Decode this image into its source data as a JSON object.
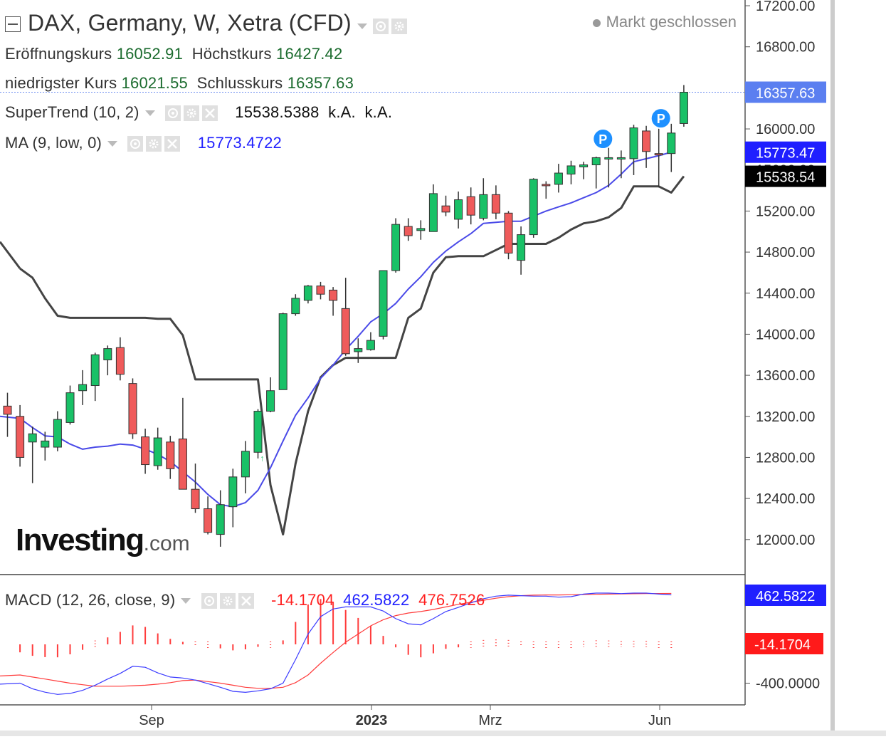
{
  "header": {
    "title": "DAX, Germany, W, Xetra (CFD)",
    "market_status": "Markt geschlossen",
    "open_label": "Eröffnungskurs",
    "open_value": "16052.91",
    "high_label": "Höchstkurs",
    "high_value": "16427.42",
    "low_label": "niedrigster Kurs",
    "low_value": "16021.55",
    "close_label": "Schlusskurs",
    "close_value": "16357.63"
  },
  "indicators": {
    "supertrend": {
      "label": "SuperTrend (10, 2)",
      "value": "15538.5388",
      "v2": "k.A.",
      "v3": "k.A."
    },
    "ma": {
      "label": "MA (9, low, 0)",
      "value": "15773.4722"
    },
    "macd": {
      "label": "MACD (12, 26, close, 9)",
      "hist": "-14.1704",
      "macd": "462.5822",
      "signal": "476.7526"
    }
  },
  "logo": {
    "main": "Investing",
    "suffix": ".com"
  },
  "colors": {
    "up": "#19c167",
    "down": "#ef5b5b",
    "ma": "#4a4ae8",
    "supertrend": "#444444",
    "price_tag": "#5b7ff0",
    "ma_tag": "#1f1fff",
    "st_tag": "#000000",
    "macd_line": "#3b3bff",
    "signal_line": "#ff3b3b",
    "hist": "#ff3b3b"
  },
  "chart_data": {
    "type": "candlestick",
    "y_axis_ticks": [
      "17200.00",
      "16800.00",
      "16400.00",
      "16000.00",
      "15600.00",
      "15200.00",
      "14800.00",
      "14400.00",
      "14000.00",
      "13600.00",
      "13200.00",
      "12800.00",
      "12400.00",
      "12000.00"
    ],
    "x_axis_labels": [
      "Sep",
      "2023",
      "Mrz",
      "Jun"
    ],
    "price_tags": {
      "close": "16357.63",
      "ma": "15773.47",
      "supertrend": "15538.54"
    },
    "candles": [
      [
        13300,
        13220,
        13430,
        13000
      ],
      [
        13200,
        12800,
        13310,
        12710
      ],
      [
        12950,
        13030,
        13100,
        12550
      ],
      [
        12900,
        12960,
        13050,
        12770
      ],
      [
        12900,
        13170,
        13250,
        12860
      ],
      [
        13140,
        13430,
        13500,
        13120
      ],
      [
        13450,
        13510,
        13650,
        13310
      ],
      [
        13500,
        13800,
        13820,
        13350
      ],
      [
        13750,
        13860,
        13890,
        13600
      ],
      [
        13870,
        13610,
        13970,
        13550
      ],
      [
        13520,
        13030,
        13570,
        12980
      ],
      [
        13000,
        12730,
        13080,
        12640
      ],
      [
        12720,
        12990,
        13090,
        12680
      ],
      [
        12950,
        12690,
        13010,
        12590
      ],
      [
        12980,
        12490,
        13380,
        12500
      ],
      [
        12490,
        12300,
        12740,
        12260
      ],
      [
        12300,
        12070,
        12420,
        12050
      ],
      [
        12050,
        12340,
        12480,
        11930
      ],
      [
        12320,
        12610,
        12690,
        12120
      ],
      [
        12610,
        12860,
        12960,
        12450
      ],
      [
        12850,
        13250,
        13270,
        12790
      ],
      [
        13250,
        13450,
        13580,
        13240
      ],
      [
        13460,
        14200,
        14210,
        13460
      ],
      [
        14200,
        14350,
        14390,
        14180
      ],
      [
        14330,
        14470,
        14480,
        14300
      ],
      [
        14470,
        14390,
        14510,
        14340
      ],
      [
        14430,
        14330,
        14460,
        14180
      ],
      [
        14250,
        13810,
        14550,
        13790
      ],
      [
        13830,
        13860,
        13960,
        13720
      ],
      [
        13850,
        13940,
        14020,
        13840
      ],
      [
        13980,
        14620,
        14620,
        13950
      ],
      [
        14620,
        15070,
        15130,
        14600
      ],
      [
        15050,
        14960,
        15130,
        14910
      ],
      [
        15010,
        15030,
        15110,
        14920
      ],
      [
        15000,
        15370,
        15460,
        15000
      ],
      [
        15250,
        15190,
        15350,
        15150
      ],
      [
        15120,
        15310,
        15390,
        15030
      ],
      [
        15340,
        15160,
        15430,
        15070
      ],
      [
        15130,
        15360,
        15520,
        15110
      ],
      [
        15360,
        15180,
        15450,
        15120
      ],
      [
        15180,
        14790,
        15200,
        14730
      ],
      [
        14720,
        14970,
        15050,
        14580
      ],
      [
        14970,
        15510,
        15520,
        14940
      ],
      [
        15460,
        15450,
        15490,
        15320
      ],
      [
        15460,
        15570,
        15660,
        15380
      ],
      [
        15560,
        15640,
        15690,
        15460
      ],
      [
        15630,
        15650,
        15680,
        15510
      ],
      [
        15650,
        15720,
        15730,
        15420
      ],
      [
        15720,
        15720,
        15820,
        15430
      ],
      [
        15720,
        15720,
        15790,
        15520
      ],
      [
        15710,
        16010,
        16040,
        15550
      ],
      [
        15980,
        15780,
        16030,
        15620
      ],
      [
        15760,
        15750,
        16020,
        15430
      ],
      [
        15760,
        15960,
        16050,
        15580
      ],
      [
        16052.91,
        16357.63,
        16427.42,
        16021.55
      ]
    ],
    "ma_line": [
      null,
      13180,
      13090,
      13010,
      13000,
      12930,
      12880,
      12900,
      12910,
      12930,
      12920,
      12880,
      12830,
      12760,
      12660,
      12560,
      12440,
      12340,
      12320,
      12360,
      12480,
      12700,
      12960,
      13210,
      13380,
      13570,
      13700,
      13850,
      13980,
      14120,
      14200,
      14300,
      14440,
      14560,
      14700,
      14810,
      14900,
      14980,
      15080,
      15090,
      15100,
      15100,
      15150,
      15200,
      15240,
      15280,
      15330,
      15380,
      15450,
      15560,
      15680,
      15710,
      15740,
      15773.47
    ],
    "supertrend_line": [
      null,
      14640,
      14550,
      14350,
      14180,
      14160,
      14160,
      14160,
      14160,
      14160,
      14160,
      14160,
      14150,
      14150,
      13990,
      13560,
      13560,
      13560,
      13560,
      13560,
      13560,
      12530,
      12050,
      12740,
      13250,
      13580,
      13700,
      13770,
      13770,
      13770,
      13770,
      13770,
      14160,
      14250,
      14600,
      14750,
      14760,
      14760,
      14760,
      14820,
      14880,
      14880,
      14880,
      14880,
      14940,
      15020,
      15080,
      15100,
      15140,
      15230,
      15440,
      15440,
      15440,
      15380,
      15538.54
    ],
    "p_markers": [
      {
        "candle": 48,
        "text": "P"
      },
      {
        "candle": 52,
        "text": "P"
      }
    ],
    "macd": {
      "y_axis_ticks": [
        "-400.0000"
      ],
      "price_tags": {
        "macd": "462.5822",
        "hist": "-14.1704"
      },
      "macd_line": [
        -400,
        -455,
        -488,
        -510,
        -500,
        -470,
        -420,
        -360,
        -305,
        -235,
        -245,
        -300,
        -340,
        -350,
        -370,
        -405,
        -440,
        -480,
        -490,
        -475,
        -455,
        -400,
        -170,
        80,
        250,
        325,
        345,
        345,
        345,
        305,
        230,
        180,
        170,
        230,
        300,
        340,
        385,
        425,
        450,
        460,
        455,
        450,
        450,
        440,
        445,
        470,
        480,
        480,
        475,
        480,
        480,
        470,
        462.58
      ],
      "signal_line": [
        -320,
        -340,
        -360,
        -380,
        -400,
        -415,
        -430,
        -430,
        -430,
        -425,
        -420,
        -410,
        -395,
        -375,
        -370,
        -385,
        -400,
        -420,
        -440,
        -450,
        -450,
        -440,
        -395,
        -320,
        -205,
        -100,
        0,
        80,
        160,
        220,
        260,
        285,
        300,
        320,
        345,
        370,
        390,
        410,
        430,
        445,
        455,
        460,
        462,
        462,
        464,
        466,
        468,
        470,
        472,
        474,
        475,
        476,
        476.75
      ],
      "histogram": [
        -80,
        -115,
        -128,
        -130,
        -100,
        -55,
        10,
        70,
        125,
        190,
        175,
        110,
        55,
        25,
        0,
        -20,
        -40,
        -60,
        -50,
        -25,
        -5,
        40,
        225,
        400,
        455,
        425,
        345,
        265,
        185,
        85,
        -30,
        -105,
        -130,
        -90,
        -45,
        -30,
        -5,
        15,
        20,
        15,
        0,
        -10,
        -12,
        -22,
        -19,
        4,
        12,
        10,
        3,
        6,
        5,
        -6,
        -14.17
      ]
    }
  }
}
